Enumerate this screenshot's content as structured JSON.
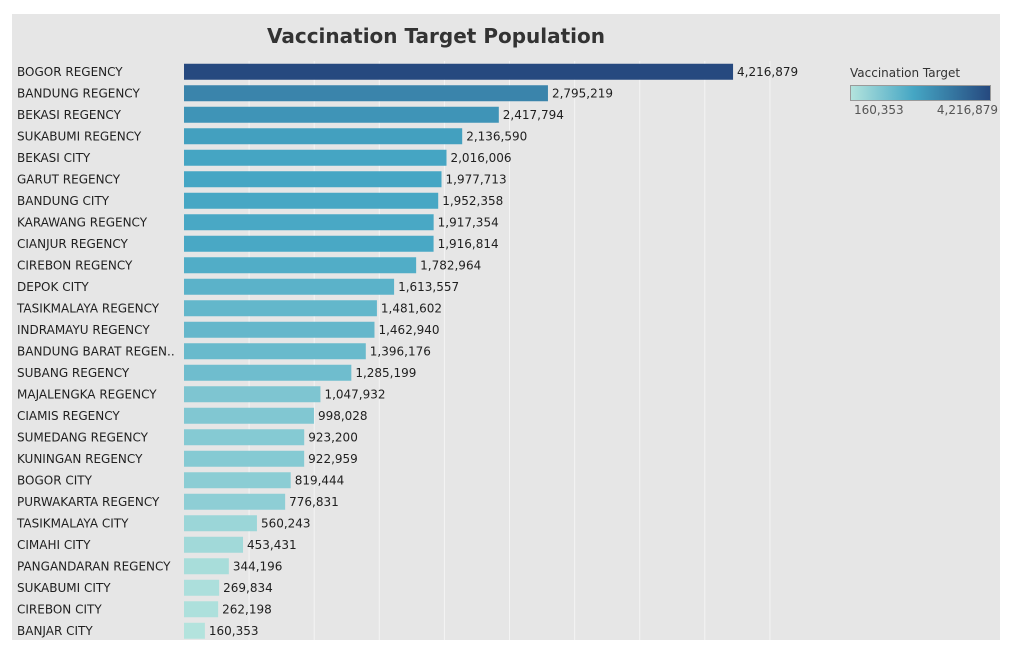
{
  "chart_data": {
    "type": "bar",
    "orientation": "horizontal",
    "title": "Vaccination Target Population",
    "categories": [
      "BOGOR REGENCY",
      "BANDUNG REGENCY",
      "BEKASI REGENCY",
      "SUKABUMI REGENCY",
      "BEKASI CITY",
      "GARUT REGENCY",
      "BANDUNG CITY",
      "KARAWANG REGENCY",
      "CIANJUR REGENCY",
      "CIREBON REGENCY",
      "DEPOK CITY",
      "TASIKMALAYA REGENCY",
      "INDRAMAYU REGENCY",
      "BANDUNG BARAT REGEN..",
      "SUBANG REGENCY",
      "MAJALENGKA REGENCY",
      "CIAMIS REGENCY",
      "SUMEDANG REGENCY",
      "KUNINGAN REGENCY",
      "BOGOR CITY",
      "PURWAKARTA REGENCY",
      "TASIKMALAYA CITY",
      "CIMAHI CITY",
      "PANGANDARAN REGENCY",
      "SUKABUMI CITY",
      "CIREBON CITY",
      "BANJAR CITY"
    ],
    "values": [
      4216879,
      2795219,
      2417794,
      2136590,
      2016006,
      1977713,
      1952358,
      1917354,
      1916814,
      1782964,
      1613557,
      1481602,
      1462940,
      1396176,
      1285199,
      1047932,
      998028,
      923200,
      922959,
      819444,
      776831,
      560243,
      453431,
      344196,
      269834,
      262198,
      160353
    ],
    "value_labels": [
      "4,216,879",
      "2,795,219",
      "2,417,794",
      "2,136,590",
      "2,016,006",
      "1,977,713",
      "1,952,358",
      "1,917,354",
      "1,916,814",
      "1,782,964",
      "1,613,557",
      "1,481,602",
      "1,462,940",
      "1,396,176",
      "1,285,199",
      "1,047,932",
      "998,028",
      "923,200",
      "922,959",
      "819,444",
      "776,831",
      "560,243",
      "453,431",
      "344,196",
      "269,834",
      "262,198",
      "160,353"
    ],
    "xlim": [
      0,
      4900000
    ],
    "gridlines_at": [
      500000,
      1000000,
      1500000,
      2000000,
      2500000,
      3000000,
      3500000,
      4000000,
      4500000
    ],
    "xlabel": "",
    "ylabel": "",
    "legend": {
      "title": "Vaccination Target",
      "min_label": "160,353",
      "max_label": "4,216,879",
      "min_value": 160353,
      "max_value": 4216879,
      "placement": "top-right"
    },
    "colors": {
      "low": "#b3e3dd",
      "mid": "#45a6c4",
      "high": "#26497f",
      "background": "#e6e6e6",
      "grid": "#f4f4f4"
    }
  }
}
